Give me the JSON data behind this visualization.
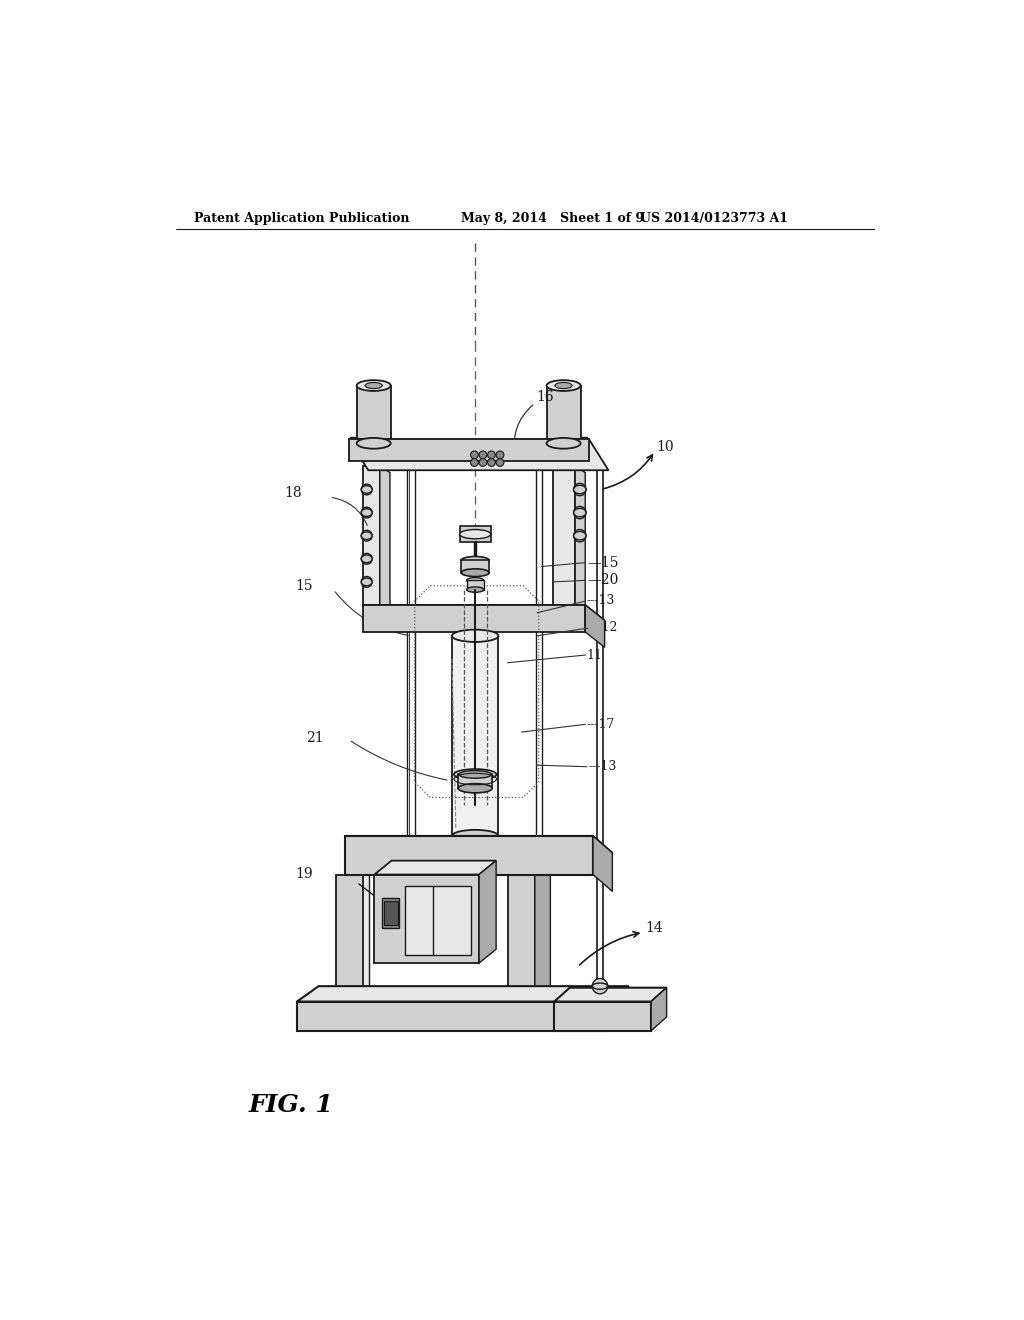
{
  "header_left": "Patent Application Publication",
  "header_mid": "May 8, 2014   Sheet 1 of 9",
  "header_right": "US 2014/0123773 A1",
  "fig_label": "FIG. 1",
  "bg_color": "#ffffff",
  "lc": "#1a1a1a",
  "gray_light": "#e8e8e8",
  "gray_mid": "#d0d0d0",
  "gray_dark": "#aaaaaa",
  "label_fs": 9,
  "header_fs": 9
}
